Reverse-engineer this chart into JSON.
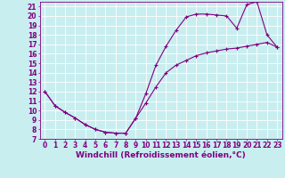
{
  "xlabel": "Windchill (Refroidissement éolien,°C)",
  "bg_color": "#c8eef0",
  "line_color": "#800080",
  "grid_color": "#ffffff",
  "xlim": [
    -0.5,
    23.5
  ],
  "ylim": [
    7,
    21.5
  ],
  "yticks": [
    7,
    8,
    9,
    10,
    11,
    12,
    13,
    14,
    15,
    16,
    17,
    18,
    19,
    20,
    21
  ],
  "xticks": [
    0,
    1,
    2,
    3,
    4,
    5,
    6,
    7,
    8,
    9,
    10,
    11,
    12,
    13,
    14,
    15,
    16,
    17,
    18,
    19,
    20,
    21,
    22,
    23
  ],
  "line1_x": [
    0,
    1,
    2,
    3,
    4,
    5,
    6,
    7,
    8,
    9,
    10,
    11,
    12,
    13,
    14,
    15,
    16,
    17,
    18,
    19,
    20,
    21,
    22,
    23
  ],
  "line1_y": [
    12.0,
    10.5,
    9.8,
    9.2,
    8.5,
    8.0,
    7.7,
    7.6,
    7.6,
    9.2,
    11.8,
    14.8,
    16.8,
    18.5,
    19.9,
    20.2,
    20.2,
    20.1,
    20.0,
    18.7,
    21.2,
    21.5,
    18.0,
    16.7
  ],
  "line2_x": [
    0,
    1,
    2,
    3,
    4,
    5,
    6,
    7,
    8,
    9,
    10,
    11,
    12,
    13,
    14,
    15,
    16,
    17,
    18,
    19,
    20,
    21,
    22,
    23
  ],
  "line2_y": [
    12.0,
    10.5,
    9.8,
    9.2,
    8.5,
    8.0,
    7.7,
    7.6,
    7.6,
    9.2,
    10.8,
    12.5,
    14.0,
    14.8,
    15.3,
    15.8,
    16.1,
    16.3,
    16.5,
    16.6,
    16.8,
    17.0,
    17.2,
    16.7
  ],
  "tick_fontsize": 5.5,
  "xlabel_fontsize": 6.5
}
